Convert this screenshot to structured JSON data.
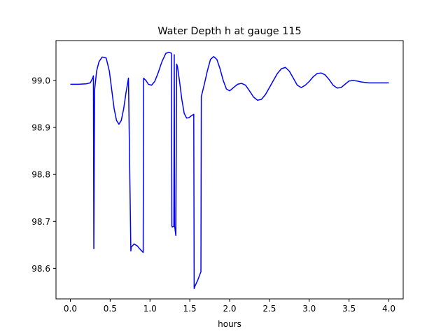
{
  "chart_data": {
    "type": "line",
    "title": "Water Depth h at gauge 115",
    "xlabel": "hours",
    "ylabel": "",
    "xlim": [
      -0.18,
      4.18
    ],
    "ylim": [
      98.535,
      99.085
    ],
    "xticks": [
      0.0,
      0.5,
      1.0,
      1.5,
      2.0,
      2.5,
      3.0,
      3.5,
      4.0
    ],
    "xtick_labels": [
      "0.0",
      "0.5",
      "1.0",
      "1.5",
      "2.0",
      "2.5",
      "3.0",
      "3.5",
      "4.0"
    ],
    "yticks": [
      98.6,
      98.7,
      98.8,
      98.9,
      99.0
    ],
    "ytick_labels": [
      "98.6",
      "98.7",
      "98.8",
      "98.9",
      "99.0"
    ],
    "grid": false,
    "series": [
      {
        "color": "#0000ff",
        "x": [
          0.0,
          0.1,
          0.2,
          0.25,
          0.28,
          0.29,
          0.295,
          0.305,
          0.33,
          0.36,
          0.4,
          0.45,
          0.49,
          0.52,
          0.55,
          0.58,
          0.61,
          0.64,
          0.67,
          0.7,
          0.73,
          0.76,
          0.765,
          0.8,
          0.84,
          0.88,
          0.915,
          0.92,
          0.95,
          0.98,
          1.02,
          1.06,
          1.1,
          1.15,
          1.2,
          1.24,
          1.27,
          1.275,
          1.28,
          1.3,
          1.305,
          1.31,
          1.325,
          1.335,
          1.345,
          1.37,
          1.4,
          1.43,
          1.46,
          1.49,
          1.52,
          1.55,
          1.555,
          1.56,
          1.6,
          1.64,
          1.645,
          1.68,
          1.72,
          1.76,
          1.8,
          1.84,
          1.88,
          1.92,
          1.96,
          2.0,
          2.05,
          2.1,
          2.15,
          2.2,
          2.25,
          2.3,
          2.35,
          2.4,
          2.45,
          2.5,
          2.55,
          2.6,
          2.65,
          2.7,
          2.75,
          2.8,
          2.85,
          2.9,
          2.95,
          3.0,
          3.05,
          3.1,
          3.15,
          3.2,
          3.25,
          3.3,
          3.35,
          3.4,
          3.45,
          3.5,
          3.55,
          3.6,
          3.65,
          3.7,
          3.75,
          3.8,
          3.85,
          3.9,
          3.95,
          4.0
        ],
        "y": [
          98.992,
          98.992,
          98.993,
          98.995,
          99.005,
          99.01,
          98.642,
          98.98,
          99.02,
          99.04,
          99.05,
          99.048,
          99.02,
          98.98,
          98.94,
          98.915,
          98.907,
          98.915,
          98.94,
          98.975,
          99.005,
          98.637,
          98.645,
          98.652,
          98.648,
          98.64,
          98.634,
          99.005,
          99.0,
          98.992,
          98.99,
          98.998,
          99.015,
          99.04,
          99.058,
          99.06,
          99.058,
          98.69,
          98.688,
          98.69,
          99.055,
          98.69,
          98.67,
          99.035,
          99.03,
          99.0,
          98.96,
          98.93,
          98.92,
          98.921,
          98.925,
          98.928,
          98.557,
          98.56,
          98.575,
          98.593,
          98.966,
          98.99,
          99.02,
          99.045,
          99.051,
          99.045,
          99.025,
          99.0,
          98.982,
          98.978,
          98.985,
          98.992,
          98.994,
          98.99,
          98.978,
          98.965,
          98.958,
          98.96,
          98.97,
          98.985,
          99.0,
          99.015,
          99.025,
          99.028,
          99.02,
          99.005,
          98.99,
          98.985,
          98.99,
          98.998,
          99.008,
          99.015,
          99.016,
          99.012,
          99.002,
          98.99,
          98.984,
          98.985,
          98.992,
          98.999,
          99.0,
          98.999,
          98.997,
          98.996,
          98.995,
          98.995,
          98.995,
          98.995,
          98.995,
          98.995
        ]
      }
    ]
  }
}
